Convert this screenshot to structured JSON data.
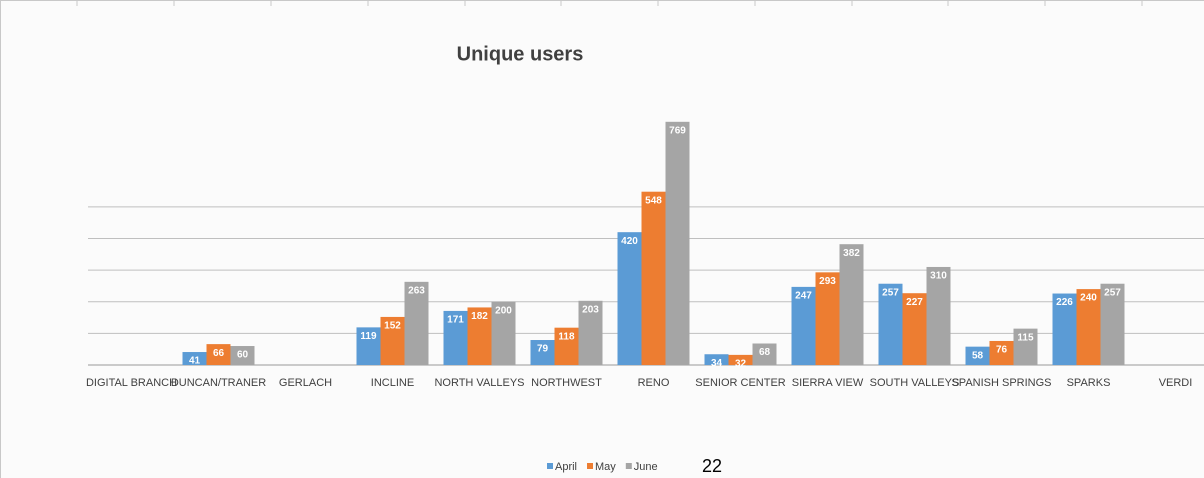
{
  "chart_data": {
    "type": "bar",
    "title": "Unique users",
    "categories": [
      "DIGITAL BRANCH",
      "DUNCAN/TRANER",
      "GERLACH",
      "INCLINE",
      "NORTH VALLEYS",
      "NORTHWEST",
      "RENO",
      "SENIOR CENTER",
      "SIERRA VIEW",
      "SOUTH VALLEYS",
      "SPANISH SPRINGS",
      "SPARKS",
      "VERDI"
    ],
    "series": [
      {
        "name": "April",
        "color": "#5b9bd5",
        "values": [
          null,
          41,
          null,
          119,
          171,
          79,
          420,
          34,
          247,
          257,
          58,
          226,
          null
        ]
      },
      {
        "name": "May",
        "color": "#ed7d31",
        "values": [
          null,
          66,
          null,
          152,
          182,
          118,
          548,
          32,
          293,
          227,
          76,
          240,
          null
        ]
      },
      {
        "name": "June",
        "color": "#a5a5a5",
        "values": [
          null,
          60,
          null,
          263,
          200,
          203,
          769,
          68,
          382,
          310,
          115,
          257,
          null
        ]
      }
    ],
    "ylim": [
      0,
      800
    ],
    "yticks": [
      0,
      100,
      200,
      300,
      400,
      500
    ],
    "grid": true,
    "legend": "bottom",
    "page_number": "22"
  }
}
